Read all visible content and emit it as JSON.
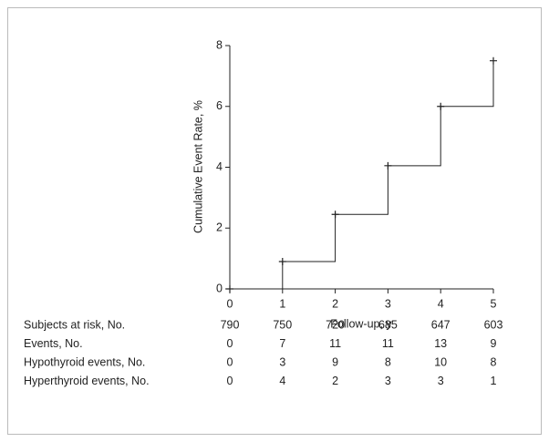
{
  "chart_data": {
    "type": "step",
    "y_label": "Cumulative Event Rate, %",
    "x_label": "Follow-up, y",
    "x": [
      0,
      1,
      2,
      3,
      4,
      5
    ],
    "values": [
      0,
      0.9,
      2.45,
      4.05,
      6.0,
      7.5
    ],
    "color": "#222222",
    "xlim": [
      0,
      5
    ],
    "xticks": [
      0,
      1,
      2,
      3,
      4,
      5
    ],
    "ylim": [
      0,
      8
    ],
    "yticks": [
      0,
      2,
      4,
      6,
      8
    ],
    "risk_table": [
      {
        "label": "Subjects at risk, No.",
        "values": [
          790,
          750,
          720,
          685,
          647,
          603
        ]
      },
      {
        "label": "Events, No.",
        "values": [
          0,
          7,
          11,
          11,
          13,
          9
        ]
      },
      {
        "label": "Hypothyroid events, No.",
        "values": [
          0,
          3,
          9,
          8,
          10,
          8
        ]
      },
      {
        "label": "Hyperthyroid events, No.",
        "values": [
          0,
          4,
          2,
          3,
          3,
          1
        ]
      }
    ]
  }
}
